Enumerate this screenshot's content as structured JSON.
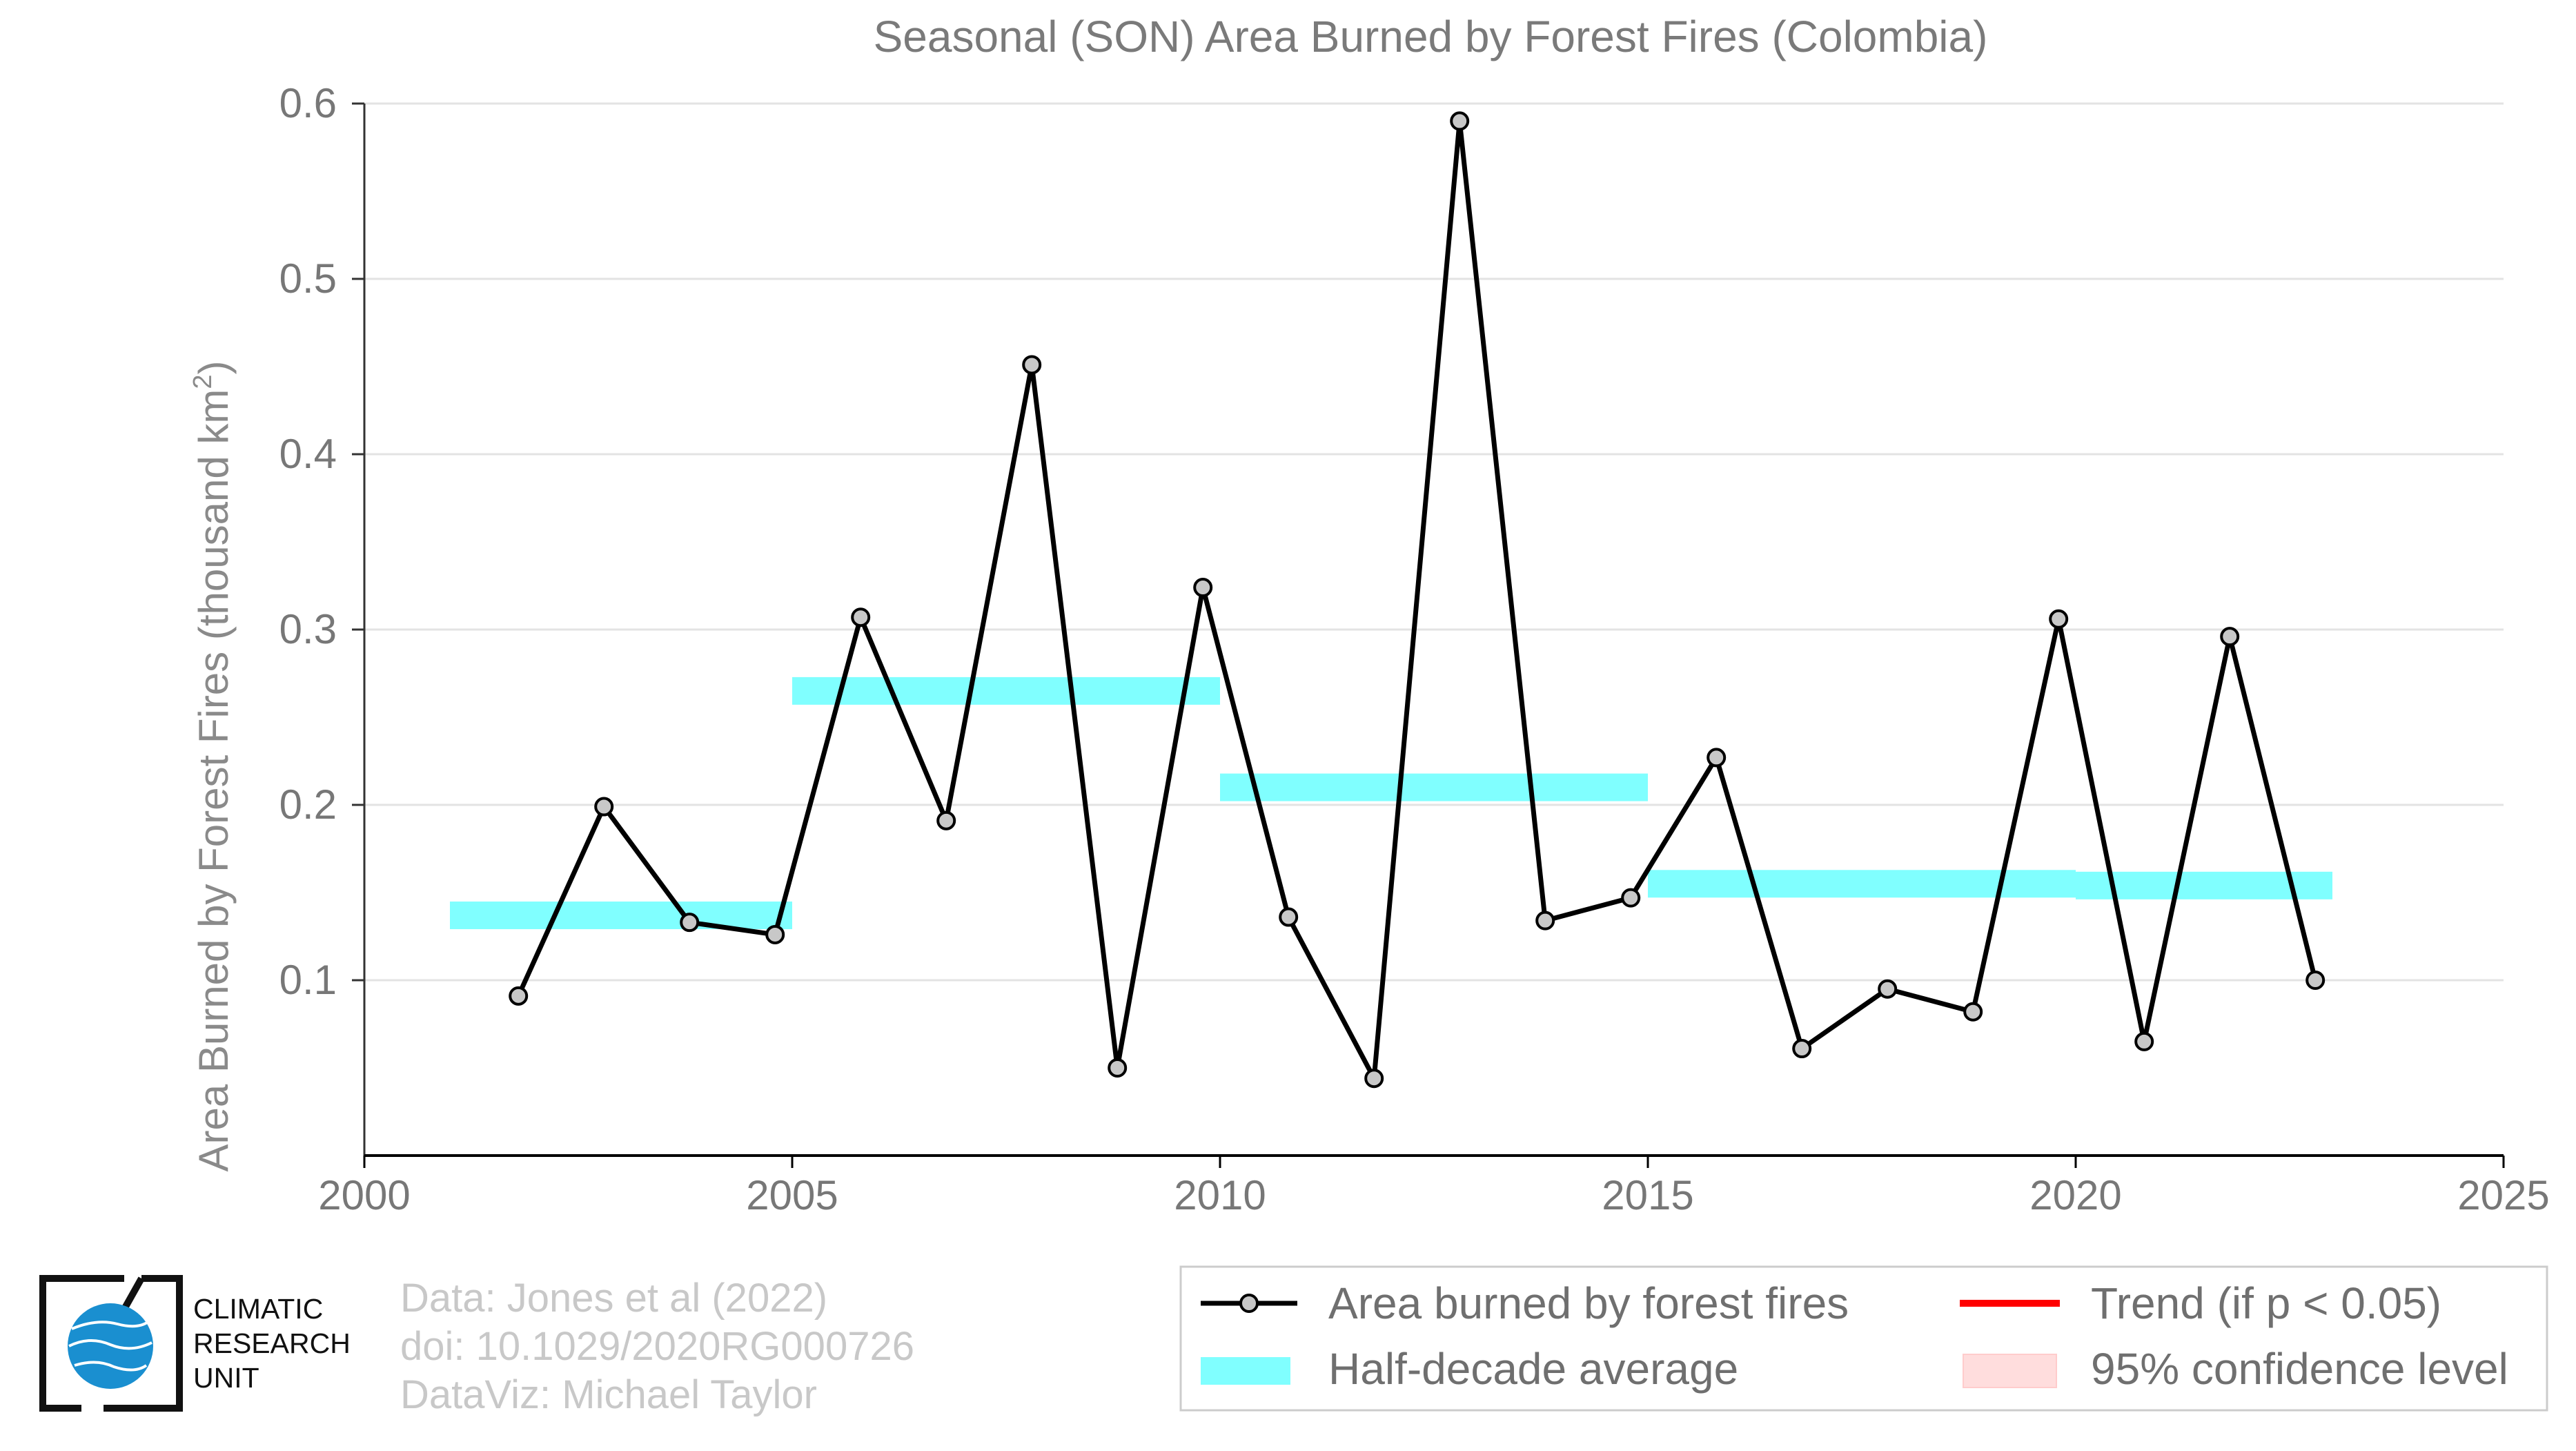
{
  "chart_data": {
    "type": "line",
    "title": "Seasonal (SON) Area Burned by Forest Fires (Colombia)",
    "ylabel_main": "Area Burned by Forest Fires (thousand km",
    "ylabel_sup": "2",
    "ylabel_close": ")",
    "xlabel": "",
    "xlim": [
      2000,
      2025
    ],
    "ylim": [
      0.0,
      0.6
    ],
    "xticks": [
      2000,
      2005,
      2010,
      2015,
      2020,
      2025
    ],
    "yticks": [
      0.1,
      0.2,
      0.3,
      0.4,
      0.5,
      0.6
    ],
    "ytick_labels": [
      "0.1",
      "0.2",
      "0.3",
      "0.4",
      "0.5",
      "0.6"
    ],
    "xtick_labels": [
      "2000",
      "2005",
      "2010",
      "2015",
      "2020",
      "2025"
    ],
    "grid": "horizontal",
    "series": [
      {
        "name": "Area burned by forest fires",
        "color": "#000000",
        "marker_fill": "#c8c8c8",
        "x": [
          2001.8,
          2002.8,
          2003.8,
          2004.8,
          2005.8,
          2006.8,
          2007.8,
          2008.8,
          2009.8,
          2010.8,
          2011.8,
          2012.8,
          2013.8,
          2014.8,
          2015.8,
          2016.8,
          2017.8,
          2018.8,
          2019.8,
          2020.8,
          2021.8,
          2022.8
        ],
        "y": [
          0.091,
          0.199,
          0.133,
          0.126,
          0.307,
          0.191,
          0.451,
          0.05,
          0.324,
          0.136,
          0.044,
          0.59,
          0.134,
          0.147,
          0.227,
          0.061,
          0.095,
          0.082,
          0.306,
          0.065,
          0.296,
          0.1
        ]
      }
    ],
    "half_decade_average": {
      "name": "Half-decade average",
      "color": "#80ffff",
      "segments": [
        {
          "x0": 2001,
          "x1": 2005,
          "y": 0.137
        },
        {
          "x0": 2005,
          "x1": 2010,
          "y": 0.265
        },
        {
          "x0": 2010,
          "x1": 2015,
          "y": 0.21
        },
        {
          "x0": 2015,
          "x1": 2020,
          "y": 0.155
        },
        {
          "x0": 2020,
          "x1": 2023,
          "y": 0.154
        }
      ]
    },
    "legend": {
      "placement": "bottom-right",
      "items": [
        {
          "label": "Area burned by forest fires",
          "kind": "line-marker",
          "color": "#000000"
        },
        {
          "label": "Trend (if p < 0.05)",
          "kind": "line",
          "color": "#ff0000"
        },
        {
          "label": "Half-decade average",
          "kind": "band",
          "color": "#80ffff"
        },
        {
          "label": "95% confidence level",
          "kind": "patch",
          "color": "#ffdddd"
        }
      ]
    }
  },
  "credits": {
    "line1": "Data: Jones et al (2022)",
    "line2": "doi: 10.1029/2020RG000726",
    "line3": "DataViz: Michael Taylor"
  },
  "logo": {
    "line1": "CLIMATIC",
    "line2": "RESEARCH",
    "line3": "UNIT",
    "globe_color": "#1a8fd0"
  }
}
